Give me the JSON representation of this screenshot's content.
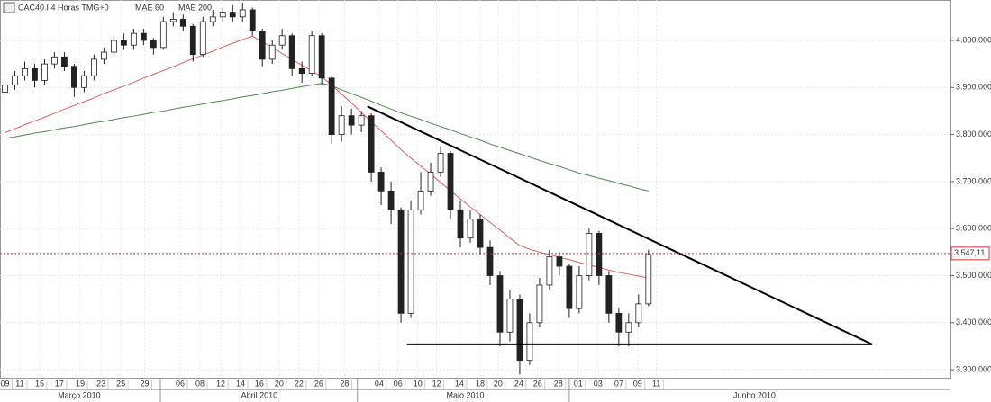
{
  "chart_data": {
    "type": "candlestick",
    "title": "CAC40.I 4 Horas TMG+0",
    "open": [
      3890,
      3905,
      3925,
      3940,
      3915,
      3950,
      3965,
      3945,
      3900,
      3925,
      3960,
      3975,
      4000,
      3990,
      4015,
      4000,
      3985,
      4040,
      4045,
      4030,
      3970,
      4040,
      4050,
      4060,
      4050,
      4065,
      4020,
      3960,
      3990,
      4010,
      3940,
      3930,
      4010,
      3920,
      3800,
      3840,
      3820,
      3840,
      3720,
      3680,
      3640,
      3420,
      3640,
      3680,
      3720,
      3760,
      3640,
      3580,
      3620,
      3560,
      3500,
      3380,
      3450,
      3320,
      3400,
      3480,
      3540,
      3520,
      3430,
      3500,
      3590,
      3500,
      3420,
      3380,
      3400,
      3440
    ],
    "high": [
      3915,
      3935,
      3955,
      3950,
      3960,
      3975,
      3975,
      3950,
      3935,
      3970,
      3985,
      4010,
      4015,
      4025,
      4025,
      4005,
      4050,
      4060,
      4055,
      4035,
      4050,
      4065,
      4070,
      4075,
      4080,
      4070,
      4025,
      4000,
      4025,
      4015,
      3955,
      4020,
      4015,
      3925,
      3860,
      3855,
      3850,
      3845,
      3730,
      3700,
      3645,
      3660,
      3720,
      3740,
      3775,
      3765,
      3660,
      3640,
      3630,
      3575,
      3510,
      3470,
      3460,
      3420,
      3495,
      3555,
      3550,
      3525,
      3520,
      3600,
      3595,
      3510,
      3430,
      3420,
      3460,
      3555
    ],
    "low": [
      3875,
      3895,
      3915,
      3900,
      3905,
      3940,
      3935,
      3880,
      3890,
      3915,
      3950,
      3965,
      3980,
      3980,
      3990,
      3970,
      3980,
      4030,
      4020,
      3955,
      3965,
      4030,
      4040,
      4040,
      4040,
      4010,
      3945,
      3950,
      3980,
      3925,
      3910,
      3925,
      3905,
      3780,
      3785,
      3800,
      3805,
      3700,
      3650,
      3610,
      3400,
      3410,
      3630,
      3670,
      3710,
      3620,
      3560,
      3570,
      3545,
      3480,
      3350,
      3360,
      3290,
      3310,
      3390,
      3470,
      3500,
      3410,
      3420,
      3490,
      3480,
      3400,
      3350,
      3350,
      3390,
      3435
    ],
    "close": [
      3905,
      3925,
      3940,
      3915,
      3950,
      3965,
      3945,
      3900,
      3925,
      3960,
      3975,
      4000,
      3990,
      4015,
      4000,
      3985,
      4040,
      4045,
      4030,
      3970,
      4040,
      4050,
      4060,
      4050,
      4065,
      4020,
      3960,
      3990,
      4010,
      3940,
      3930,
      4010,
      3920,
      3800,
      3840,
      3820,
      3840,
      3720,
      3680,
      3640,
      3420,
      3640,
      3680,
      3720,
      3760,
      3640,
      3580,
      3620,
      3560,
      3500,
      3380,
      3450,
      3320,
      3400,
      3480,
      3540,
      3520,
      3430,
      3500,
      3590,
      3500,
      3420,
      3380,
      3400,
      3440,
      3545
    ],
    "series": [
      {
        "name": "MAE 60",
        "color": "#e06060",
        "values": [
          3804,
          3812,
          3821,
          3829,
          3837,
          3845,
          3854,
          3862,
          3870,
          3878,
          3887,
          3895,
          3903,
          3911,
          3920,
          3928,
          3936,
          3944,
          3953,
          3961,
          3969,
          3977,
          3986,
          3994,
          4002,
          4009,
          3997,
          3985,
          3972,
          3960,
          3947,
          3935,
          3923,
          3905,
          3886,
          3867,
          3847,
          3827,
          3808,
          3788,
          3768,
          3750,
          3733,
          3716,
          3698,
          3681,
          3663,
          3646,
          3630,
          3613,
          3597,
          3580,
          3564,
          3556,
          3550,
          3545,
          3539,
          3534,
          3528,
          3523,
          3517,
          3512,
          3507,
          3503,
          3499,
          3495
        ]
      },
      {
        "name": "MAE 200",
        "color": "#4f8a4f",
        "values": [
          3792,
          3795,
          3799,
          3803,
          3806,
          3810,
          3814,
          3817,
          3821,
          3825,
          3828,
          3832,
          3836,
          3839,
          3843,
          3847,
          3850,
          3854,
          3858,
          3861,
          3865,
          3869,
          3872,
          3876,
          3880,
          3883,
          3887,
          3891,
          3894,
          3898,
          3902,
          3905,
          3909,
          3904,
          3895,
          3887,
          3879,
          3871,
          3862,
          3854,
          3846,
          3839,
          3832,
          3824,
          3817,
          3810,
          3802,
          3795,
          3788,
          3780,
          3773,
          3766,
          3759,
          3752,
          3745,
          3738,
          3732,
          3725,
          3718,
          3713,
          3707,
          3702,
          3696,
          3691,
          3685,
          3680
        ]
      }
    ],
    "trendlines": [
      {
        "x": [
          37.1,
          88.1
        ],
        "y": [
          3860,
          3354
        ]
      },
      {
        "x": [
          41.1,
          88.1
        ],
        "y": [
          3354,
          3354
        ]
      }
    ],
    "last_price": {
      "value": 3547.11,
      "label": "3.547,11"
    },
    "xlim": [
      0,
      96
    ],
    "xticks": [
      {
        "value": 0.5,
        "label": "09"
      },
      {
        "value": 2,
        "label": "11"
      },
      {
        "value": 4,
        "label": "15"
      },
      {
        "value": 6,
        "label": "17"
      },
      {
        "value": 8.1,
        "label": "19"
      },
      {
        "value": 10.2,
        "label": "23"
      },
      {
        "value": 12.2,
        "label": "25"
      },
      {
        "value": 14.6,
        "label": "29"
      },
      {
        "value": 18.2,
        "label": "06"
      },
      {
        "value": 20.2,
        "label": "08"
      },
      {
        "value": 22.3,
        "label": "12"
      },
      {
        "value": 24.3,
        "label": "14"
      },
      {
        "value": 26.2,
        "label": "16"
      },
      {
        "value": 28.2,
        "label": "20"
      },
      {
        "value": 30.2,
        "label": "22"
      },
      {
        "value": 32.2,
        "label": "26"
      },
      {
        "value": 34.8,
        "label": "28"
      },
      {
        "value": 38.3,
        "label": "04"
      },
      {
        "value": 40.2,
        "label": "06"
      },
      {
        "value": 42.2,
        "label": "10"
      },
      {
        "value": 44.1,
        "label": "12"
      },
      {
        "value": 46.4,
        "label": "14"
      },
      {
        "value": 48.5,
        "label": "18"
      },
      {
        "value": 50.3,
        "label": "20"
      },
      {
        "value": 52.4,
        "label": "24"
      },
      {
        "value": 54.3,
        "label": "26"
      },
      {
        "value": 56.4,
        "label": "28"
      },
      {
        "value": 58.4,
        "label": "01"
      },
      {
        "value": 60.4,
        "label": "03"
      },
      {
        "value": 62.5,
        "label": "07"
      },
      {
        "value": 64.4,
        "label": "09"
      },
      {
        "value": 66.3,
        "label": "11"
      }
    ],
    "months": [
      {
        "value": 8,
        "label": "Março 2010"
      },
      {
        "value": 26.2,
        "label": "Abril 2010"
      },
      {
        "value": 47,
        "label": "Maio 2010"
      },
      {
        "value": 76.2,
        "label": "Junho 2010"
      }
    ],
    "month_bounds": [
      16.2,
      36.1,
      57.5
    ],
    "ylim": [
      3283,
      4086
    ],
    "yticks": [
      {
        "value": 3300,
        "label": "3.300,000"
      },
      {
        "value": 3400,
        "label": "3.400,000"
      },
      {
        "value": 3500,
        "label": "3.500,000"
      },
      {
        "value": 3600,
        "label": "3.600,000"
      },
      {
        "value": 3700,
        "label": "3.700,000"
      },
      {
        "value": 3800,
        "label": "3.800,000"
      },
      {
        "value": 3900,
        "label": "3.900,000"
      },
      {
        "value": 4000,
        "label": "4.000,000"
      }
    ],
    "grid": true
  }
}
